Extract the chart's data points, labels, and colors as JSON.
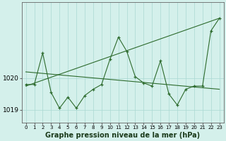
{
  "xlabel": "Graphe pression niveau de la mer (hPa)",
  "x_values": [
    0,
    1,
    2,
    3,
    4,
    5,
    6,
    7,
    8,
    9,
    10,
    11,
    12,
    13,
    14,
    15,
    16,
    17,
    18,
    19,
    20,
    21,
    22,
    23
  ],
  "y_main": [
    1019.8,
    1019.8,
    1020.8,
    1019.55,
    1019.05,
    1019.4,
    1019.05,
    1019.45,
    1019.65,
    1019.8,
    1020.6,
    1021.3,
    1020.85,
    1020.05,
    1019.85,
    1019.75,
    1020.55,
    1019.5,
    1019.15,
    1019.65,
    1019.75,
    1019.75,
    1021.5,
    1021.9
  ],
  "trend1_y": [
    1019.75,
    1021.9
  ],
  "trend2_y": [
    1020.2,
    1019.65
  ],
  "background_color": "#d4f0eb",
  "grid_color": "#aad8d2",
  "line_color": "#2d6b2d",
  "ylim": [
    1018.6,
    1022.4
  ],
  "yticks": [
    1019,
    1020
  ],
  "xlim": [
    -0.5,
    23.5
  ]
}
